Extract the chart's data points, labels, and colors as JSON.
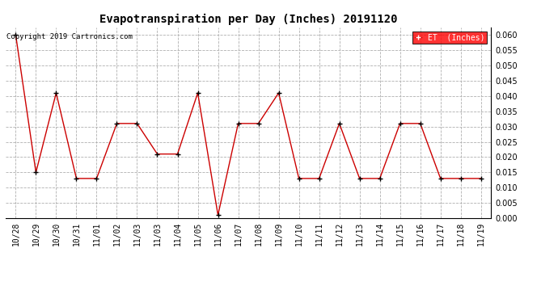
{
  "title": "Evapotranspiration per Day (Inches) 20191120",
  "copyright_text": "Copyright 2019 Cartronics.com",
  "legend_bg": "#ff0000",
  "legend_fg": "#ffffff",
  "x_labels": [
    "10/28",
    "10/29",
    "10/30",
    "10/31",
    "11/01",
    "11/02",
    "11/03",
    "11/03",
    "11/04",
    "11/05",
    "11/06",
    "11/07",
    "11/08",
    "11/09",
    "11/10",
    "11/11",
    "11/12",
    "11/13",
    "11/14",
    "11/15",
    "11/16",
    "11/17",
    "11/18",
    "11/19"
  ],
  "y_values": [
    0.06,
    0.015,
    0.041,
    0.013,
    0.013,
    0.031,
    0.031,
    0.021,
    0.021,
    0.041,
    0.001,
    0.031,
    0.031,
    0.041,
    0.013,
    0.013,
    0.031,
    0.013,
    0.013,
    0.031,
    0.031,
    0.013,
    0.013,
    0.013
  ],
  "line_color": "#cc0000",
  "marker_color": "#000000",
  "bg_color": "#ffffff",
  "grid_color": "#b0b0b0",
  "ylim": [
    0.0,
    0.0625
  ],
  "yticks": [
    0.0,
    0.005,
    0.01,
    0.015,
    0.02,
    0.025,
    0.03,
    0.035,
    0.04,
    0.045,
    0.05,
    0.055,
    0.06
  ]
}
